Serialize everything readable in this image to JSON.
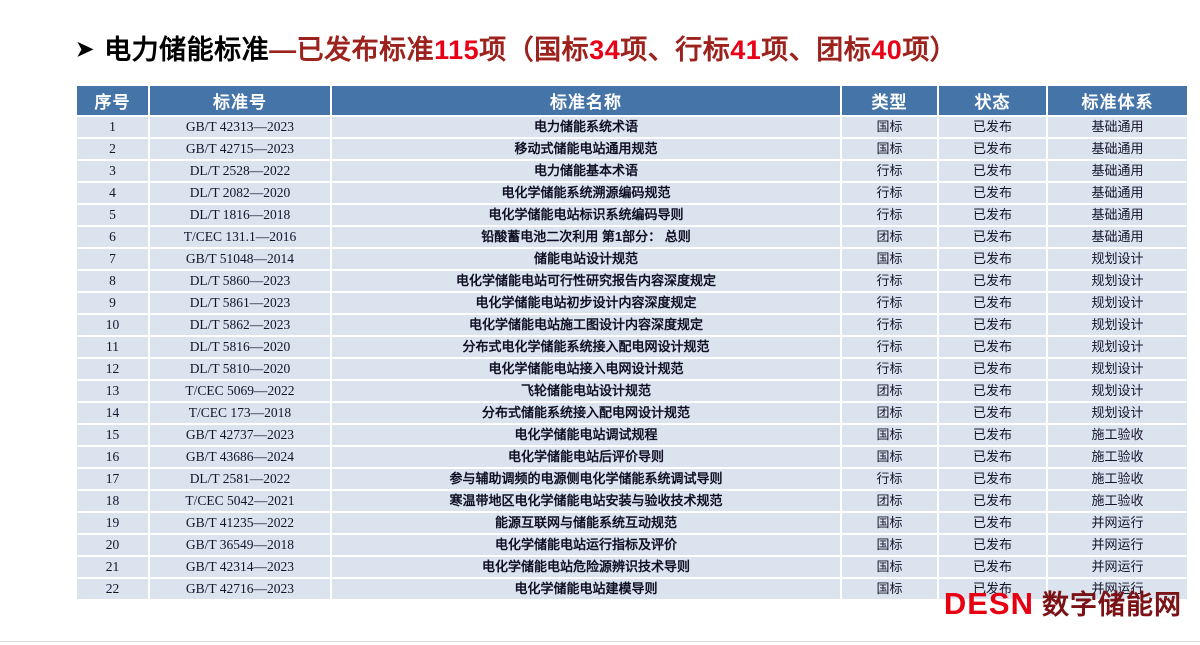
{
  "title": {
    "arrow": "➤",
    "main": "电力储能标准",
    "segments": [
      {
        "text": "—已发布标准",
        "tone": "dark"
      },
      {
        "text": "115",
        "tone": "bright"
      },
      {
        "text": "项（国标",
        "tone": "dark"
      },
      {
        "text": "34",
        "tone": "bright"
      },
      {
        "text": "项、行标",
        "tone": "dark"
      },
      {
        "text": "41",
        "tone": "bright"
      },
      {
        "text": "项、团标",
        "tone": "dark"
      },
      {
        "text": "40",
        "tone": "bright"
      },
      {
        "text": "项）",
        "tone": "dark"
      }
    ]
  },
  "colors": {
    "header_blue": "#4574a9",
    "row_background": "#dbe3ef",
    "title_dark_red": "#9c221d",
    "title_number_red": "#e80016",
    "logo_red": "#e60012",
    "logo_dark_red": "#7a1216"
  },
  "table": {
    "headers": [
      "序号",
      "标准号",
      "标准名称",
      "类型",
      "状态",
      "标准体系"
    ],
    "col_keys": [
      "no",
      "standard-number",
      "standard-name",
      "type",
      "status",
      "system"
    ],
    "rows": [
      [
        "1",
        "GB/T 42313—2023",
        "电力储能系统术语",
        "国标",
        "已发布",
        "基础通用"
      ],
      [
        "2",
        "GB/T 42715—2023",
        "移动式储能电站通用规范",
        "国标",
        "已发布",
        "基础通用"
      ],
      [
        "3",
        "DL/T 2528—2022",
        "电力储能基本术语",
        "行标",
        "已发布",
        "基础通用"
      ],
      [
        "4",
        "DL/T 2082—2020",
        "电化学储能系统溯源编码规范",
        "行标",
        "已发布",
        "基础通用"
      ],
      [
        "5",
        "DL/T 1816—2018",
        "电化学储能电站标识系统编码导则",
        "行标",
        "已发布",
        "基础通用"
      ],
      [
        "6",
        "T/CEC 131.1—2016",
        "铅酸蓄电池二次利用 第1部分： 总则",
        "团标",
        "已发布",
        "基础通用"
      ],
      [
        "7",
        "GB/T 51048—2014",
        "储能电站设计规范",
        "国标",
        "已发布",
        "规划设计"
      ],
      [
        "8",
        "DL/T 5860—2023",
        "电化学储能电站可行性研究报告内容深度规定",
        "行标",
        "已发布",
        "规划设计"
      ],
      [
        "9",
        "DL/T 5861—2023",
        "电化学储能电站初步设计内容深度规定",
        "行标",
        "已发布",
        "规划设计"
      ],
      [
        "10",
        "DL/T 5862—2023",
        "电化学储能电站施工图设计内容深度规定",
        "行标",
        "已发布",
        "规划设计"
      ],
      [
        "11",
        "DL/T 5816—2020",
        "分布式电化学储能系统接入配电网设计规范",
        "行标",
        "已发布",
        "规划设计"
      ],
      [
        "12",
        "DL/T 5810—2020",
        "电化学储能电站接入电网设计规范",
        "行标",
        "已发布",
        "规划设计"
      ],
      [
        "13",
        "T/CEC 5069—2022",
        "飞轮储能电站设计规范",
        "团标",
        "已发布",
        "规划设计"
      ],
      [
        "14",
        "T/CEC 173—2018",
        "分布式储能系统接入配电网设计规范",
        "团标",
        "已发布",
        "规划设计"
      ],
      [
        "15",
        "GB/T 42737—2023",
        "电化学储能电站调试规程",
        "国标",
        "已发布",
        "施工验收"
      ],
      [
        "16",
        "GB/T 43686—2024",
        "电化学储能电站后评价导则",
        "国标",
        "已发布",
        "施工验收"
      ],
      [
        "17",
        "DL/T 2581—2022",
        "参与辅助调频的电源侧电化学储能系统调试导则",
        "行标",
        "已发布",
        "施工验收"
      ],
      [
        "18",
        "T/CEC 5042—2021",
        "寒温带地区电化学储能电站安装与验收技术规范",
        "团标",
        "已发布",
        "施工验收"
      ],
      [
        "19",
        "GB/T 41235—2022",
        "能源互联网与储能系统互动规范",
        "国标",
        "已发布",
        "并网运行"
      ],
      [
        "20",
        "GB/T 36549—2018",
        "电化学储能电站运行指标及评价",
        "国标",
        "已发布",
        "并网运行"
      ],
      [
        "21",
        "GB/T 42314—2023",
        "电化学储能电站危险源辨识技术导则",
        "国标",
        "已发布",
        "并网运行"
      ],
      [
        "22",
        "GB/T 42716—2023",
        "电化学储能电站建模导则",
        "国标",
        "已发布",
        "并网运行"
      ]
    ]
  },
  "logo": {
    "brand": "DESN",
    "name": "数字储能网"
  }
}
